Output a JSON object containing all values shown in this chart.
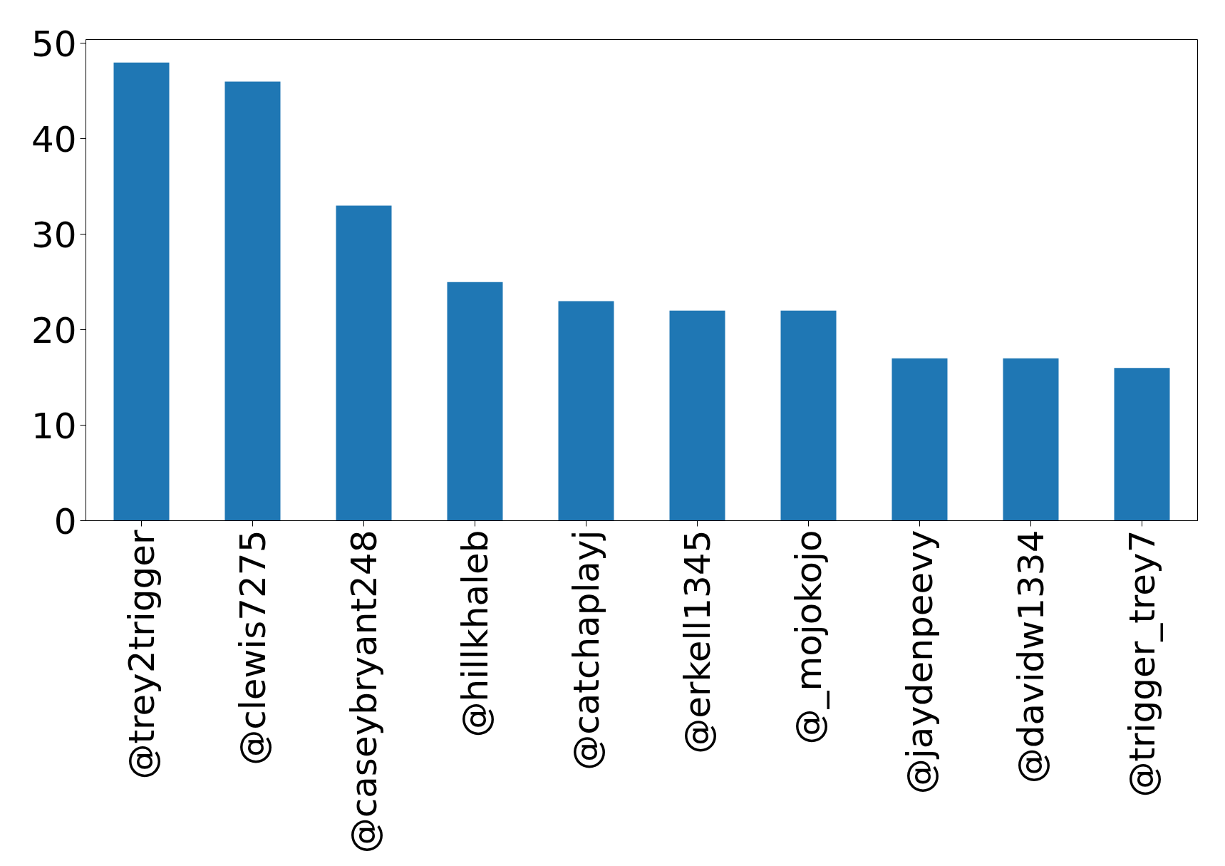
{
  "chart_data": {
    "type": "bar",
    "categories": [
      "@trey2trigger",
      "@clewis7275",
      "@caseybryant248",
      "@hillkhaleb",
      "@catchaplayj",
      "@erkell1345",
      "@_mojokojo",
      "@jaydenpeevy",
      "@davidw1334",
      "@trigger_trey7"
    ],
    "values": [
      48,
      46,
      33,
      25,
      23,
      22,
      22,
      17,
      17,
      16
    ],
    "color": "#1f77b4",
    "ylim": [
      0,
      50.4
    ],
    "yticks": [
      0,
      10,
      20,
      30,
      40,
      50
    ],
    "grid": false
  }
}
